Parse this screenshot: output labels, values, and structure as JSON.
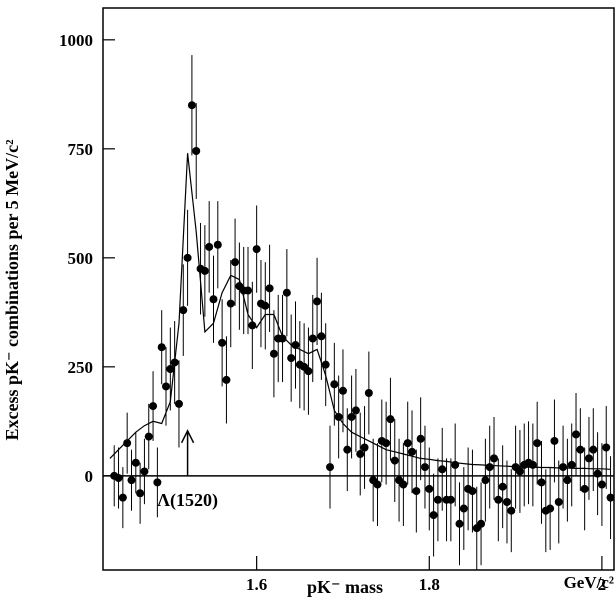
{
  "chart_data": {
    "type": "scatter",
    "ylabel": "Excess pK⁻ combinations per 5 MeV/c²",
    "xlabel": "pK⁻ mass",
    "xunit": "GeV/c²",
    "annotation": {
      "text": "Λ(1520)",
      "x": 1.52
    },
    "xlim": [
      1.422,
      2.014
    ],
    "ylim": [
      -216,
      1073
    ],
    "xticks": [
      1.6,
      1.8,
      2
    ],
    "yticks": [
      0,
      250,
      500,
      750,
      1000
    ],
    "color": "#000000",
    "x": [
      1.435,
      1.44,
      1.445,
      1.45,
      1.455,
      1.46,
      1.465,
      1.47,
      1.475,
      1.48,
      1.485,
      1.49,
      1.495,
      1.5,
      1.505,
      1.51,
      1.515,
      1.52,
      1.525,
      1.53,
      1.535,
      1.54,
      1.545,
      1.55,
      1.555,
      1.56,
      1.565,
      1.57,
      1.575,
      1.58,
      1.585,
      1.59,
      1.595,
      1.6,
      1.605,
      1.61,
      1.615,
      1.62,
      1.625,
      1.63,
      1.635,
      1.64,
      1.645,
      1.65,
      1.655,
      1.66,
      1.665,
      1.67,
      1.675,
      1.68,
      1.685,
      1.69,
      1.695,
      1.7,
      1.705,
      1.71,
      1.715,
      1.72,
      1.725,
      1.73,
      1.735,
      1.74,
      1.745,
      1.75,
      1.755,
      1.76,
      1.765,
      1.77,
      1.775,
      1.78,
      1.785,
      1.79,
      1.795,
      1.8,
      1.805,
      1.81,
      1.815,
      1.82,
      1.825,
      1.83,
      1.835,
      1.84,
      1.845,
      1.85,
      1.855,
      1.86,
      1.865,
      1.87,
      1.875,
      1.88,
      1.885,
      1.89,
      1.895,
      1.9,
      1.905,
      1.91,
      1.915,
      1.92,
      1.925,
      1.93,
      1.935,
      1.94,
      1.945,
      1.95,
      1.955,
      1.96,
      1.965,
      1.97,
      1.975,
      1.98,
      1.985,
      1.99,
      1.995,
      2.0,
      2.005,
      2.01
    ],
    "values": [
      0,
      -5,
      -50,
      75,
      -10,
      30,
      -40,
      10,
      90,
      160,
      -15,
      295,
      205,
      245,
      260,
      165,
      380,
      500,
      850,
      745,
      475,
      470,
      525,
      405,
      530,
      305,
      220,
      395,
      490,
      435,
      425,
      425,
      345,
      520,
      395,
      390,
      430,
      280,
      315,
      315,
      420,
      270,
      300,
      255,
      250,
      240,
      315,
      400,
      320,
      255,
      20,
      210,
      135,
      195,
      60,
      135,
      150,
      50,
      65,
      190,
      -10,
      -20,
      80,
      75,
      130,
      35,
      -10,
      -20,
      75,
      55,
      -35,
      85,
      20,
      -30,
      -90,
      -55,
      15,
      -55,
      -55,
      25,
      -110,
      -75,
      -30,
      -35,
      -120,
      -110,
      -10,
      20,
      40,
      -55,
      -25,
      -60,
      -80,
      20,
      10,
      25,
      30,
      25,
      75,
      -15,
      -80,
      -75,
      80,
      -60,
      20,
      -10,
      25,
      95,
      60,
      -30,
      40,
      60,
      5,
      -20,
      65,
      -50
    ],
    "errors": [
      70,
      70,
      70,
      70,
      70,
      70,
      70,
      75,
      75,
      80,
      80,
      85,
      90,
      95,
      95,
      100,
      105,
      110,
      115,
      110,
      105,
      105,
      105,
      100,
      100,
      100,
      100,
      100,
      100,
      100,
      100,
      100,
      100,
      100,
      100,
      100,
      100,
      100,
      100,
      100,
      100,
      100,
      100,
      100,
      100,
      100,
      100,
      100,
      100,
      95,
      95,
      95,
      95,
      95,
      95,
      95,
      95,
      95,
      95,
      95,
      95,
      95,
      95,
      95,
      95,
      95,
      95,
      95,
      95,
      95,
      95,
      95,
      95,
      95,
      95,
      95,
      95,
      95,
      95,
      95,
      95,
      95,
      95,
      95,
      95,
      95,
      95,
      95,
      95,
      95,
      95,
      95,
      95,
      95,
      95,
      95,
      95,
      95,
      95,
      95,
      95,
      95,
      95,
      95,
      95,
      95,
      95,
      95,
      95,
      95,
      95,
      95,
      95,
      95,
      95,
      95
    ],
    "fit": {
      "x": [
        1.43,
        1.44,
        1.45,
        1.46,
        1.47,
        1.48,
        1.49,
        1.5,
        1.51,
        1.52,
        1.53,
        1.54,
        1.55,
        1.56,
        1.57,
        1.58,
        1.59,
        1.6,
        1.61,
        1.62,
        1.63,
        1.64,
        1.65,
        1.66,
        1.67,
        1.68,
        1.69,
        1.7,
        1.71,
        1.72,
        1.73,
        1.74,
        1.75,
        1.76,
        1.77,
        1.78,
        1.79,
        1.8,
        1.81,
        1.82,
        1.83,
        1.84,
        1.85,
        1.86,
        1.87,
        1.88,
        1.89,
        1.9,
        1.91,
        1.92,
        1.93,
        1.94,
        1.95,
        1.96,
        1.97,
        1.98,
        1.99,
        2.0,
        2.01
      ],
      "values": [
        40,
        60,
        80,
        100,
        115,
        125,
        120,
        170,
        350,
        740,
        560,
        330,
        350,
        420,
        460,
        450,
        370,
        340,
        370,
        370,
        320,
        300,
        290,
        280,
        290,
        230,
        150,
        120,
        100,
        90,
        80,
        70,
        60,
        55,
        50,
        45,
        40,
        38,
        35,
        33,
        30,
        28,
        26,
        25,
        24,
        23,
        22,
        21,
        20,
        20,
        19,
        19,
        18,
        18,
        17,
        17,
        16,
        16,
        15
      ]
    }
  }
}
